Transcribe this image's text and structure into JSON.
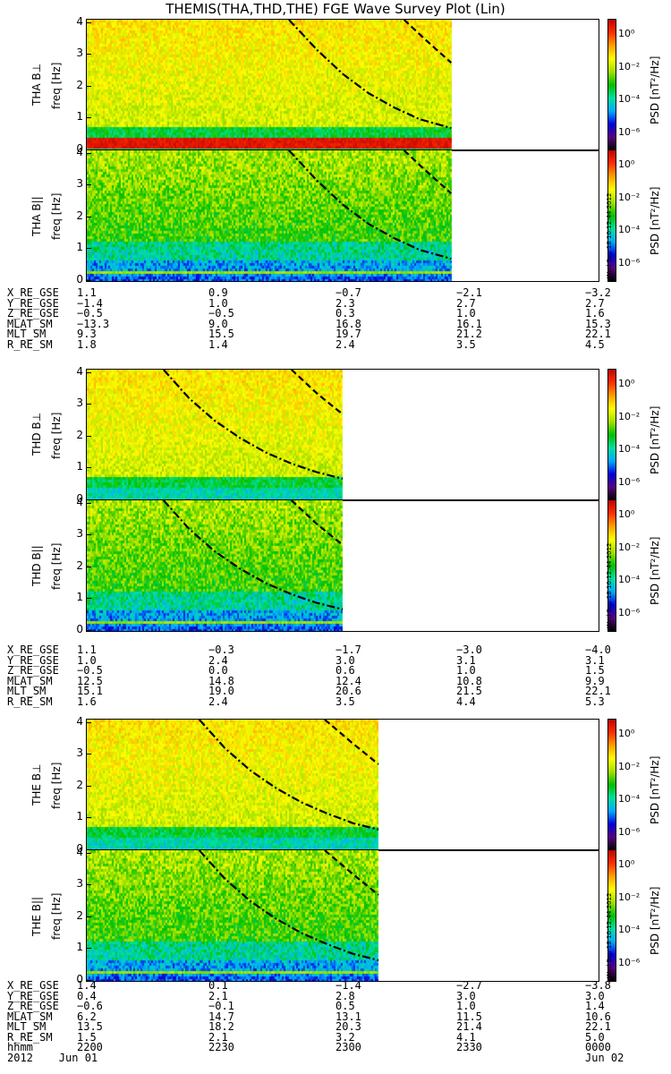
{
  "title": "THEMIS(THA,THD,THE) FGE Wave Survey Plot (Lin)",
  "colorbar": {
    "label": "PSD [nT²/Hz]",
    "ticks": [
      "10⁰",
      "10⁻²",
      "10⁻⁴",
      "10⁻⁶"
    ],
    "exponents": [
      0,
      -2,
      -4,
      -6
    ],
    "range_log10": [
      -7,
      1
    ],
    "colors": [
      "#000000",
      "#5a0080",
      "#0000e0",
      "#00aaff",
      "#00e0a0",
      "#00c000",
      "#a0e000",
      "#ffff00",
      "#ffa000",
      "#ff3000",
      "#c00000"
    ]
  },
  "stamp": "Wed Sep 18 10:12:44 2012",
  "axis": {
    "freq_label": "freq [Hz]",
    "freq_ticks": [
      "0",
      "1",
      "2",
      "3",
      "4"
    ],
    "ylim": [
      0,
      4.1
    ]
  },
  "probes": [
    {
      "id": "tha",
      "perp_label": "THA B⊥",
      "par_label": "THA B||",
      "data_end_fraction": 0.712,
      "ephemeris": {
        "rows": [
          {
            "label": "X_RE_GSE",
            "values": [
              "1.1",
              "0.9",
              "−0.7",
              "−2.1",
              "−3.2"
            ]
          },
          {
            "label": "Y_RE_GSE",
            "values": [
              "−1.4",
              "1.0",
              "2.3",
              "2.7",
              "2.7"
            ]
          },
          {
            "label": "Z_RE_GSE",
            "values": [
              "−0.5",
              "−0.5",
              "0.3",
              "1.0",
              "1.6"
            ]
          },
          {
            "label": "MLAT_SM",
            "values": [
              "−13.3",
              "9.0",
              "16.8",
              "16.1",
              "15.3"
            ]
          },
          {
            "label": "MLT_SM",
            "values": [
              "9.3",
              "15.5",
              "19.7",
              "21.2",
              "22.1"
            ]
          },
          {
            "label": "R_RE_SM",
            "values": [
              "1.8",
              "1.4",
              "2.4",
              "3.5",
              "4.5"
            ]
          }
        ]
      },
      "curves": {
        "dashdot": {
          "x": [
            0.395,
            0.45,
            0.5,
            0.55,
            0.6,
            0.65,
            0.712
          ],
          "y": [
            4.1,
            3.15,
            2.4,
            1.8,
            1.35,
            0.98,
            0.7
          ]
        },
        "dash": {
          "x": [
            0.62,
            0.66,
            0.712
          ],
          "y": [
            4.1,
            3.5,
            2.75
          ]
        }
      }
    },
    {
      "id": "thd",
      "perp_label": "THD B⊥",
      "par_label": "THD B||",
      "data_end_fraction": 0.5,
      "ephemeris": {
        "rows": [
          {
            "label": "X_RE_GSE",
            "values": [
              "1.1",
              "−0.3",
              "−1.7",
              "−3.0",
              "−4.0"
            ]
          },
          {
            "label": "Y_RE_GSE",
            "values": [
              "1.0",
              "2.4",
              "3.0",
              "3.1",
              "3.1"
            ]
          },
          {
            "label": "Z_RE_GSE",
            "values": [
              "−0.5",
              "0.0",
              "0.6",
              "1.0",
              "1.5"
            ]
          },
          {
            "label": "MLAT_SM",
            "values": [
              "12.5",
              "14.8",
              "12.4",
              "10.8",
              "9.9"
            ]
          },
          {
            "label": "MLT_SM",
            "values": [
              "15.1",
              "19.0",
              "20.6",
              "21.5",
              "22.1"
            ]
          },
          {
            "label": "R_RE_SM",
            "values": [
              "1.6",
              "2.4",
              "3.5",
              "4.4",
              "5.3"
            ]
          }
        ]
      },
      "curves": {
        "dashdot": {
          "x": [
            0.15,
            0.2,
            0.25,
            0.3,
            0.35,
            0.4,
            0.45,
            0.5
          ],
          "y": [
            4.1,
            3.2,
            2.5,
            1.95,
            1.5,
            1.15,
            0.88,
            0.68
          ]
        },
        "dash": {
          "x": [
            0.4,
            0.45,
            0.5
          ],
          "y": [
            4.1,
            3.35,
            2.7
          ]
        }
      }
    },
    {
      "id": "the",
      "perp_label": "THE B⊥",
      "par_label": "THE B||",
      "data_end_fraction": 0.57,
      "ephemeris": {
        "rows": [
          {
            "label": "X_RE_GSE",
            "values": [
              "1.4",
              "0.1",
              "−1.4",
              "−2.7",
              "−3.8"
            ]
          },
          {
            "label": "Y_RE_GSE",
            "values": [
              "0.4",
              "2.1",
              "2.8",
              "3.0",
              "3.0"
            ]
          },
          {
            "label": "Z_RE_GSE",
            "values": [
              "−0.6",
              "−0.1",
              "0.5",
              "1.0",
              "1.4"
            ]
          },
          {
            "label": "MLAT_SM",
            "values": [
              "6.2",
              "14.7",
              "13.1",
              "11.5",
              "10.6"
            ]
          },
          {
            "label": "MLT_SM",
            "values": [
              "13.5",
              "18.2",
              "20.3",
              "21.4",
              "22.1"
            ]
          },
          {
            "label": "R_RE_SM",
            "values": [
              "1.5",
              "2.1",
              "3.2",
              "4.1",
              "5.0"
            ]
          },
          {
            "label": "hhmm",
            "values": [
              "2200",
              "2230",
              "2300",
              "2330",
              "0000"
            ]
          }
        ],
        "date_left": "2012    Jun 01",
        "date_right": "Jun 02"
      },
      "curves": {
        "dashdot": {
          "x": [
            0.22,
            0.27,
            0.32,
            0.37,
            0.42,
            0.47,
            0.52,
            0.57
          ],
          "y": [
            4.1,
            3.2,
            2.5,
            1.95,
            1.5,
            1.15,
            0.85,
            0.65
          ]
        },
        "dash": {
          "x": [
            0.465,
            0.52,
            0.57
          ],
          "y": [
            4.1,
            3.35,
            2.7
          ]
        }
      }
    }
  ]
}
